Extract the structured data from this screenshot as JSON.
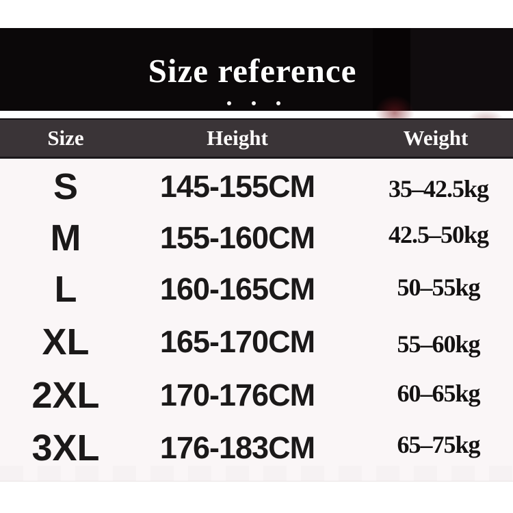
{
  "hero": {
    "title": "Size reference",
    "dot_glyphs": [
      "ellipsis-dot",
      "ellipsis-dot",
      "ellipsis-dot"
    ]
  },
  "table": {
    "columns": [
      "Size",
      "Height",
      "Weight"
    ],
    "rows": [
      {
        "size": "S",
        "height": "145-155CM",
        "weight": "35–42.5kg"
      },
      {
        "size": "M",
        "height": "155-160CM",
        "weight": "42.5–50kg"
      },
      {
        "size": "L",
        "height": "160-165CM",
        "weight": "50–55kg"
      },
      {
        "size": "XL",
        "height": "165-170CM",
        "weight": "55–60kg"
      },
      {
        "size": "2XL",
        "height": "170-176CM",
        "weight": "60–65kg"
      },
      {
        "size": "3XL",
        "height": "176-183CM",
        "weight": "65–75kg"
      }
    ]
  },
  "colors": {
    "hero_background": "#0b0809",
    "header_band_background": "#3a3437",
    "table_background": "#faf6f7",
    "text_dark": "#1b1919",
    "text_light": "#ffffff",
    "red_tint": "#7a181e"
  },
  "chart_data": {
    "type": "table",
    "title": "Size reference",
    "columns": [
      "Size",
      "Height",
      "Weight"
    ],
    "rows": [
      [
        "S",
        "145-155CM",
        "35–42.5kg"
      ],
      [
        "M",
        "155-160CM",
        "42.5–50kg"
      ],
      [
        "L",
        "160-165CM",
        "50–55kg"
      ],
      [
        "XL",
        "165-170CM",
        "55–60kg"
      ],
      [
        "2XL",
        "170-176CM",
        "60–65kg"
      ],
      [
        "3XL",
        "176-183CM",
        "65–75kg"
      ]
    ]
  }
}
